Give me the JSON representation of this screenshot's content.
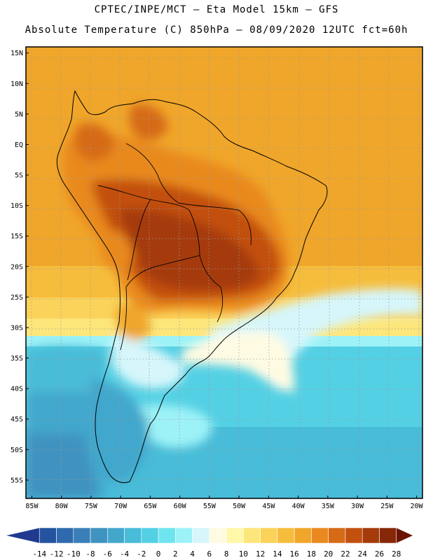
{
  "header": {
    "line1": "CPTEC/INPE/MCT –  Eta Model 15km – GFS",
    "line2": "Absolute Temperature (C) 850hPa – 08/09/2020 12UTC fct=60h"
  },
  "map": {
    "lat_labels": [
      "15N",
      "10N",
      "5N",
      "EQ",
      "5S",
      "10S",
      "15S",
      "20S",
      "25S",
      "30S",
      "35S",
      "40S",
      "45S",
      "50S",
      "55S"
    ],
    "lon_labels": [
      "85W",
      "80W",
      "75W",
      "70W",
      "65W",
      "60W",
      "55W",
      "50W",
      "45W",
      "40W",
      "35W",
      "30W",
      "25W",
      "20W"
    ],
    "lat_values": [
      15,
      10,
      5,
      0,
      -5,
      -10,
      -15,
      -20,
      -25,
      -30,
      -35,
      -40,
      -45,
      -50,
      -55
    ],
    "lon_values": [
      -85,
      -80,
      -75,
      -70,
      -65,
      -60,
      -55,
      -50,
      -45,
      -40,
      -35,
      -30,
      -25,
      -20
    ],
    "extent": {
      "lon_min": -86,
      "lon_max": -19,
      "lat_min": -58,
      "lat_max": 16
    }
  },
  "colorbar": {
    "labels": [
      "-14",
      "-12",
      "-10",
      "-8",
      "-6",
      "-4",
      "-2",
      "0",
      "2",
      "4",
      "6",
      "8",
      "10",
      "12",
      "14",
      "16",
      "18",
      "20",
      "22",
      "24",
      "26",
      "28"
    ],
    "colors": [
      "#1f3a8f",
      "#2453a0",
      "#2f6aae",
      "#3a7fb8",
      "#3f93c0",
      "#43a7cc",
      "#48bcd8",
      "#54d0e4",
      "#6ee5ee",
      "#9df2f7",
      "#d6f6fb",
      "#fffbe3",
      "#fff8a8",
      "#fde67a",
      "#fbd35a",
      "#f6bd3c",
      "#f0a62a",
      "#e9891f",
      "#d66a16",
      "#c2500f",
      "#a53a0a",
      "#862808",
      "#6b1406"
    ]
  }
}
